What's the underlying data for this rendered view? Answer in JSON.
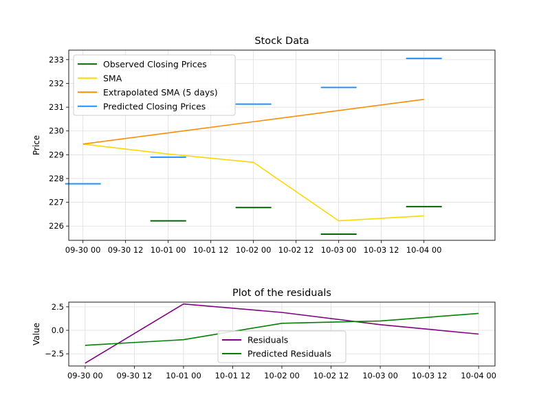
{
  "chart_data": [
    {
      "type": "line",
      "title": "Stock Data",
      "xlabel": "",
      "ylabel": "Price",
      "xlim": [
        "09-29 20:00",
        "10-04 20:00"
      ],
      "ylim": [
        225.4,
        233.4
      ],
      "yticks": [
        226,
        227,
        228,
        229,
        230,
        231,
        232,
        233
      ],
      "xticks": [
        "09-30 00",
        "09-30 12",
        "10-01 00",
        "10-01 12",
        "10-02 00",
        "10-02 12",
        "10-03 00",
        "10-03 12",
        "10-04 00"
      ],
      "grid": true,
      "legend_position": "upper-left",
      "series": [
        {
          "name": "Observed Closing Prices",
          "style": "horizontal-markers",
          "color": "#006400",
          "points": [
            [
              "10-01 00",
              226.22
            ],
            [
              "10-02 00",
              226.78
            ],
            [
              "10-03 00",
              225.66
            ],
            [
              "10-04 00",
              226.82
            ]
          ]
        },
        {
          "name": "SMA",
          "style": "line",
          "color": "#FFD700",
          "points": [
            [
              "09-30 00",
              229.45
            ],
            [
              "10-01 00",
              229.03
            ],
            [
              "10-02 00",
              228.68
            ],
            [
              "10-03 00",
              226.22
            ],
            [
              "10-04 00",
              226.43
            ]
          ]
        },
        {
          "name": "Extrapolated SMA (5 days)",
          "style": "line",
          "color": "#FF8C00",
          "points": [
            [
              "09-30 00",
              229.45
            ],
            [
              "10-04 00",
              231.33
            ]
          ]
        },
        {
          "name": "Predicted Closing Prices",
          "style": "horizontal-markers",
          "color": "#1E90FF",
          "points": [
            [
              "09-30 00",
              227.78
            ],
            [
              "10-01 00",
              228.9
            ],
            [
              "10-02 00",
              231.13
            ],
            [
              "10-03 00",
              231.83
            ],
            [
              "10-04 00",
              233.05
            ]
          ]
        }
      ]
    },
    {
      "type": "line",
      "title": "Plot of the residuals",
      "xlabel": "",
      "ylabel": "Value",
      "xlim": [
        "09-29 20:00",
        "10-04 04:00"
      ],
      "ylim": [
        -3.8,
        3.0
      ],
      "yticks": [
        -2.5,
        0.0,
        2.5
      ],
      "ytick_labels": [
        "−2.5",
        "0.0",
        "2.5"
      ],
      "xticks": [
        "09-30 00",
        "09-30 12",
        "10-01 00",
        "10-01 12",
        "10-02 00",
        "10-02 12",
        "10-03 00",
        "10-03 12",
        "10-04 00"
      ],
      "grid": true,
      "legend_position": "lower-center",
      "series": [
        {
          "name": "Residuals",
          "style": "line",
          "color": "#800080",
          "points": [
            [
              "09-30 00",
              -3.5
            ],
            [
              "10-01 00",
              2.8
            ],
            [
              "10-02 00",
              1.9
            ],
            [
              "10-03 00",
              0.6
            ],
            [
              "10-04 00",
              -0.4
            ]
          ]
        },
        {
          "name": "Predicted Residuals",
          "style": "line",
          "color": "#008000",
          "points": [
            [
              "09-30 00",
              -1.6
            ],
            [
              "10-01 00",
              -1.0
            ],
            [
              "10-02 00",
              0.75
            ],
            [
              "10-03 00",
              1.0
            ],
            [
              "10-04 00",
              1.8
            ]
          ]
        }
      ]
    }
  ]
}
